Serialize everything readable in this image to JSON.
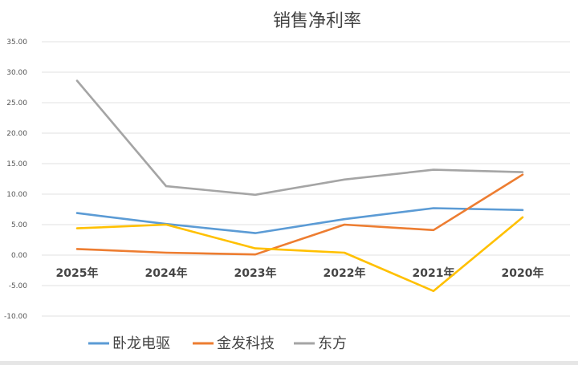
{
  "chart_data": {
    "type": "line",
    "title": "销售净利率",
    "categories": [
      "2025年",
      "2024年",
      "2023年",
      "2022年",
      "2021年",
      "2020年"
    ],
    "ylim": [
      -10,
      35
    ],
    "yticks": [
      "-10.00",
      "-5.00",
      "0.00",
      "5.00",
      "10.00",
      "15.00",
      "20.00",
      "25.00",
      "30.00",
      "35.00"
    ],
    "grid": true,
    "legend_position": "bottom",
    "series": [
      {
        "name": "卧龙电驱",
        "color": "#5b9bd5",
        "values": [
          6.9,
          5.1,
          3.6,
          5.9,
          7.7,
          7.4
        ]
      },
      {
        "name": "金发科技",
        "color": "#ed7d31",
        "values": [
          1.0,
          0.4,
          0.1,
          5.0,
          4.1,
          13.2
        ]
      },
      {
        "name": "东方",
        "color": "#a5a5a5",
        "values": [
          28.6,
          11.3,
          9.9,
          12.4,
          14.0,
          13.6
        ]
      },
      {
        "name": "",
        "color": "#ffc000",
        "values": [
          4.4,
          5.0,
          1.1,
          0.4,
          -5.9,
          6.2
        ]
      }
    ]
  }
}
